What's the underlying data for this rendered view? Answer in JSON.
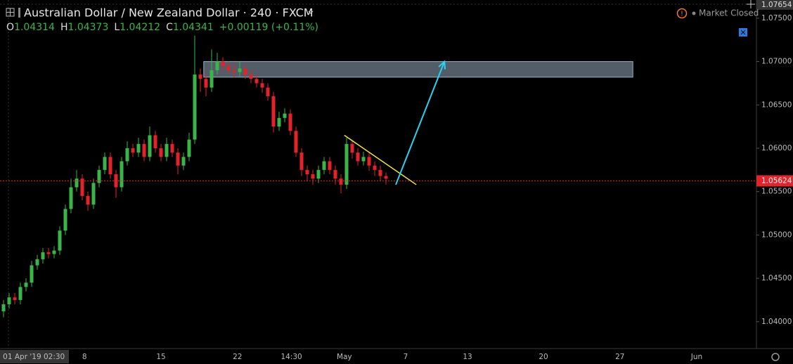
{
  "chart_data": {
    "type": "candlestick",
    "title": "Australian Dollar / New Zealand Dollar · 240 · FXCM",
    "status": "Market Closed",
    "ohlc": {
      "labels": [
        "O",
        "H",
        "L",
        "C"
      ],
      "values": [
        "1.04314",
        "1.04373",
        "1.04212",
        "1.04341"
      ],
      "change": "+0.00119 (+0.11%)"
    },
    "up_color": "#3bb54a",
    "down_color": "#e3232b",
    "candles": {
      "open": [
        1.0412,
        1.042,
        1.0428,
        1.0425,
        1.044,
        1.0445,
        1.0465,
        1.0472,
        1.048,
        1.0478,
        1.0482,
        1.0505,
        1.053,
        1.0555,
        1.0565,
        1.0545,
        1.0535,
        1.056,
        1.0575,
        1.059,
        1.057,
        1.0555,
        1.0585,
        1.06,
        1.0595,
        1.0605,
        1.059,
        1.0615,
        1.06,
        1.059,
        1.0605,
        1.0595,
        1.058,
        1.059,
        1.061,
        1.0685,
        1.068,
        1.067,
        1.069,
        1.07,
        1.0695,
        1.069,
        1.0688,
        1.0692,
        1.0685,
        1.068,
        1.0675,
        1.067,
        1.066,
        1.0625,
        1.0635,
        1.064,
        1.062,
        1.0595,
        1.0575,
        1.057,
        1.0565,
        1.0575,
        1.0585,
        1.0575,
        1.0565,
        1.0558,
        1.0605,
        1.0595,
        1.0585,
        1.059,
        1.058,
        1.0575,
        1.0568
      ],
      "high": [
        1.0425,
        1.0433,
        1.0433,
        1.0445,
        1.045,
        1.047,
        1.0477,
        1.0485,
        1.0485,
        1.0487,
        1.051,
        1.0535,
        1.0565,
        1.0575,
        1.057,
        1.055,
        1.0565,
        1.058,
        1.0595,
        1.0595,
        1.0575,
        1.059,
        1.0608,
        1.0605,
        1.0612,
        1.061,
        1.0625,
        1.062,
        1.0605,
        1.0612,
        1.061,
        1.06,
        1.0595,
        1.0618,
        1.073,
        1.0692,
        1.0685,
        1.0714,
        1.071,
        1.0705,
        1.07,
        1.0698,
        1.07,
        1.0697,
        1.069,
        1.0685,
        1.068,
        1.0675,
        1.0665,
        1.0642,
        1.0646,
        1.0645,
        1.0625,
        1.06,
        1.058,
        1.0575,
        1.058,
        1.059,
        1.059,
        1.058,
        1.057,
        1.0612,
        1.061,
        1.06,
        1.0596,
        1.0595,
        1.0585,
        1.058,
        1.0572
      ],
      "low": [
        1.0405,
        1.0415,
        1.042,
        1.042,
        1.0435,
        1.044,
        1.046,
        1.0467,
        1.0473,
        1.0473,
        1.0477,
        1.05,
        1.0525,
        1.055,
        1.054,
        1.0528,
        1.053,
        1.0555,
        1.057,
        1.0565,
        1.0543,
        1.055,
        1.058,
        1.059,
        1.059,
        1.0585,
        1.0585,
        1.0595,
        1.0585,
        1.0585,
        1.059,
        1.057,
        1.0575,
        1.0585,
        1.0605,
        1.0665,
        1.066,
        1.0665,
        1.0685,
        1.0688,
        1.0685,
        1.0682,
        1.0683,
        1.068,
        1.0675,
        1.067,
        1.0664,
        1.0655,
        1.0618,
        1.062,
        1.063,
        1.0615,
        1.059,
        1.0568,
        1.0562,
        1.0558,
        1.056,
        1.057,
        1.057,
        1.0558,
        1.0548,
        1.0553,
        1.0588,
        1.058,
        1.058,
        1.0574,
        1.0568,
        1.0562,
        1.0558
      ],
      "close": [
        1.042,
        1.0428,
        1.0425,
        1.044,
        1.0445,
        1.0465,
        1.0472,
        1.048,
        1.0478,
        1.0482,
        1.0505,
        1.053,
        1.0555,
        1.0565,
        1.0545,
        1.0535,
        1.056,
        1.0575,
        1.059,
        1.057,
        1.0555,
        1.0585,
        1.06,
        1.0595,
        1.0605,
        1.059,
        1.0615,
        1.06,
        1.059,
        1.0605,
        1.0595,
        1.058,
        1.059,
        1.061,
        1.0685,
        1.068,
        1.067,
        1.069,
        1.07,
        1.0695,
        1.069,
        1.0688,
        1.0692,
        1.0685,
        1.068,
        1.0675,
        1.067,
        1.066,
        1.0625,
        1.0635,
        1.064,
        1.062,
        1.0595,
        1.0575,
        1.057,
        1.0565,
        1.0575,
        1.0585,
        1.0575,
        1.0565,
        1.0558,
        1.0605,
        1.0595,
        1.0585,
        1.059,
        1.058,
        1.0575,
        1.0568,
        1.0565
      ]
    },
    "xlim": [
      -0.6,
      133.75
    ],
    "xticks": [
      {
        "value": 5.4,
        "label": "01 Apr '19   02:30"
      },
      {
        "value": 14.4,
        "label": "8"
      },
      {
        "value": 28,
        "label": "15"
      },
      {
        "value": 41.6,
        "label": "22"
      },
      {
        "value": 51.2,
        "label": "14:30"
      },
      {
        "value": 60.6,
        "label": "May"
      },
      {
        "value": 71.5,
        "label": "7"
      },
      {
        "value": 82.5,
        "label": "13"
      },
      {
        "value": 96,
        "label": "20"
      },
      {
        "value": 109.6,
        "label": "27"
      },
      {
        "value": 123.25,
        "label": "Jun"
      }
    ],
    "ylim": [
      1.0369,
      1.0771
    ],
    "yticks": [
      {
        "value": 1.075,
        "label": "1.07500"
      },
      {
        "value": 1.07,
        "label": "1.07000"
      },
      {
        "value": 1.065,
        "label": "1.06500"
      },
      {
        "value": 1.06,
        "label": "1.06000"
      },
      {
        "value": 1.055,
        "label": "1.05500"
      },
      {
        "value": 1.05,
        "label": "1.05000"
      },
      {
        "value": 1.045,
        "label": "1.04500"
      },
      {
        "value": 1.04,
        "label": "1.04000"
      }
    ],
    "last_price": {
      "value": 1.05624,
      "label": "1.05624",
      "color": "#e3232b"
    },
    "crosshair_price": {
      "value": 1.07654,
      "label": "1.07654"
    },
    "zone": {
      "x": [
        35.6,
        111.9
      ],
      "top": 1.07,
      "bottom": 1.0682
    },
    "trendline": {
      "x": [
        60.6,
        73.4
      ],
      "y": [
        1.0615,
        1.0558
      ],
      "color": "#f5e63a"
    },
    "arrow": {
      "x": [
        69.75,
        78.4
      ],
      "y": [
        1.0558,
        1.07
      ],
      "color": "#29d3f0"
    }
  }
}
